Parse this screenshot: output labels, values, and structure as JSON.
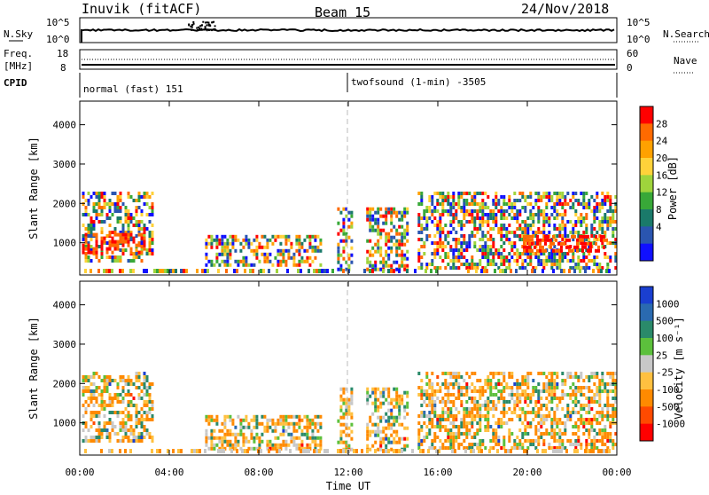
{
  "header": {
    "radar": "Inuvik (fitACF)",
    "beam": "Beam 15",
    "date": "24/Nov/2018"
  },
  "nsky_panel": {
    "left_label": "N.Sky",
    "left_ticks": [
      "10^5",
      "10^0"
    ],
    "right_ticks": [
      "10^5",
      "10^0"
    ],
    "right_label": "N.Search"
  },
  "freq_panel": {
    "left_label_1": "Freq.",
    "left_label_2": "[MHz]",
    "left_ticks": [
      "18",
      "8"
    ],
    "right_ticks": [
      "60",
      "0"
    ],
    "right_label": "Nave"
  },
  "cpid_panel": {
    "left_label": "CPID",
    "mode1": "normal (fast) 151",
    "mode2": "twofsound (1-min) -3505"
  },
  "chart_data": [
    {
      "type": "heatmap",
      "name": "power",
      "ylabel": "Slant Range [km]",
      "xlabel": "Time UT",
      "x_ticks": [
        "00:00",
        "04:00",
        "08:00",
        "12:00",
        "16:00",
        "20:00",
        "00:00"
      ],
      "y_ticks": [
        1000,
        2000,
        3000,
        4000
      ],
      "ylim": [
        180,
        4600
      ],
      "xlim_hours": [
        0,
        24
      ],
      "colorbar": {
        "label": "Power [dB]",
        "ticks": [
          "28",
          "24",
          "20",
          "16",
          "12",
          "8",
          "4"
        ],
        "colors": [
          "#ff0000",
          "#ff6a00",
          "#ffa100",
          "#ffd23a",
          "#9fd43c",
          "#38a838",
          "#1a7a6a",
          "#2a55b0",
          "#1010ff"
        ]
      },
      "echo_regions": [
        {
          "t0": 0.1,
          "t1": 3.3,
          "r0": 500,
          "r1": 2300,
          "level": "mixed"
        },
        {
          "t0": 0.1,
          "t1": 2.9,
          "r0": 750,
          "r1": 1250,
          "level": "high"
        },
        {
          "t0": 5.6,
          "t1": 10.8,
          "r0": 400,
          "r1": 1200,
          "level": "mixed"
        },
        {
          "t0": 11.5,
          "t1": 12.2,
          "r0": 300,
          "r1": 1900,
          "level": "mixed"
        },
        {
          "t0": 12.8,
          "t1": 14.6,
          "r0": 300,
          "r1": 1900,
          "level": "mixed"
        },
        {
          "t0": 15.1,
          "t1": 24.0,
          "r0": 400,
          "r1": 2300,
          "level": "mixed"
        },
        {
          "t0": 19.8,
          "t1": 23.5,
          "r0": 750,
          "r1": 1200,
          "level": "high"
        }
      ]
    },
    {
      "type": "heatmap",
      "name": "velocity",
      "ylabel": "Slant Range [km]",
      "xlabel": "Time UT",
      "x_ticks": [
        "00:00",
        "04:00",
        "08:00",
        "12:00",
        "16:00",
        "20:00",
        "00:00"
      ],
      "y_ticks": [
        1000,
        2000,
        3000,
        4000
      ],
      "ylim": [
        180,
        4600
      ],
      "xlim_hours": [
        0,
        24
      ],
      "colorbar": {
        "label": "Velocity [m s⁻¹]",
        "ticks": [
          "1000",
          "500",
          "100",
          "25",
          "-25",
          "-100",
          "-500",
          "-1000"
        ],
        "colors": [
          "#1a3fd0",
          "#2a6ab0",
          "#2a8a6a",
          "#5cc03c",
          "#c8c8c8",
          "#ffc040",
          "#ff8a00",
          "#ff4a00",
          "#ff0000"
        ]
      },
      "echo_regions": [
        {
          "t0": 0.1,
          "t1": 3.3,
          "r0": 500,
          "r1": 2300,
          "level": "mixed"
        },
        {
          "t0": 5.6,
          "t1": 10.8,
          "r0": 300,
          "r1": 1200,
          "level": "mixed"
        },
        {
          "t0": 11.5,
          "t1": 12.2,
          "r0": 300,
          "r1": 1900,
          "level": "mixed"
        },
        {
          "t0": 12.8,
          "t1": 14.6,
          "r0": 300,
          "r1": 1900,
          "level": "mixed"
        },
        {
          "t0": 15.1,
          "t1": 24.0,
          "r0": 400,
          "r1": 2300,
          "level": "mixed"
        }
      ]
    }
  ]
}
